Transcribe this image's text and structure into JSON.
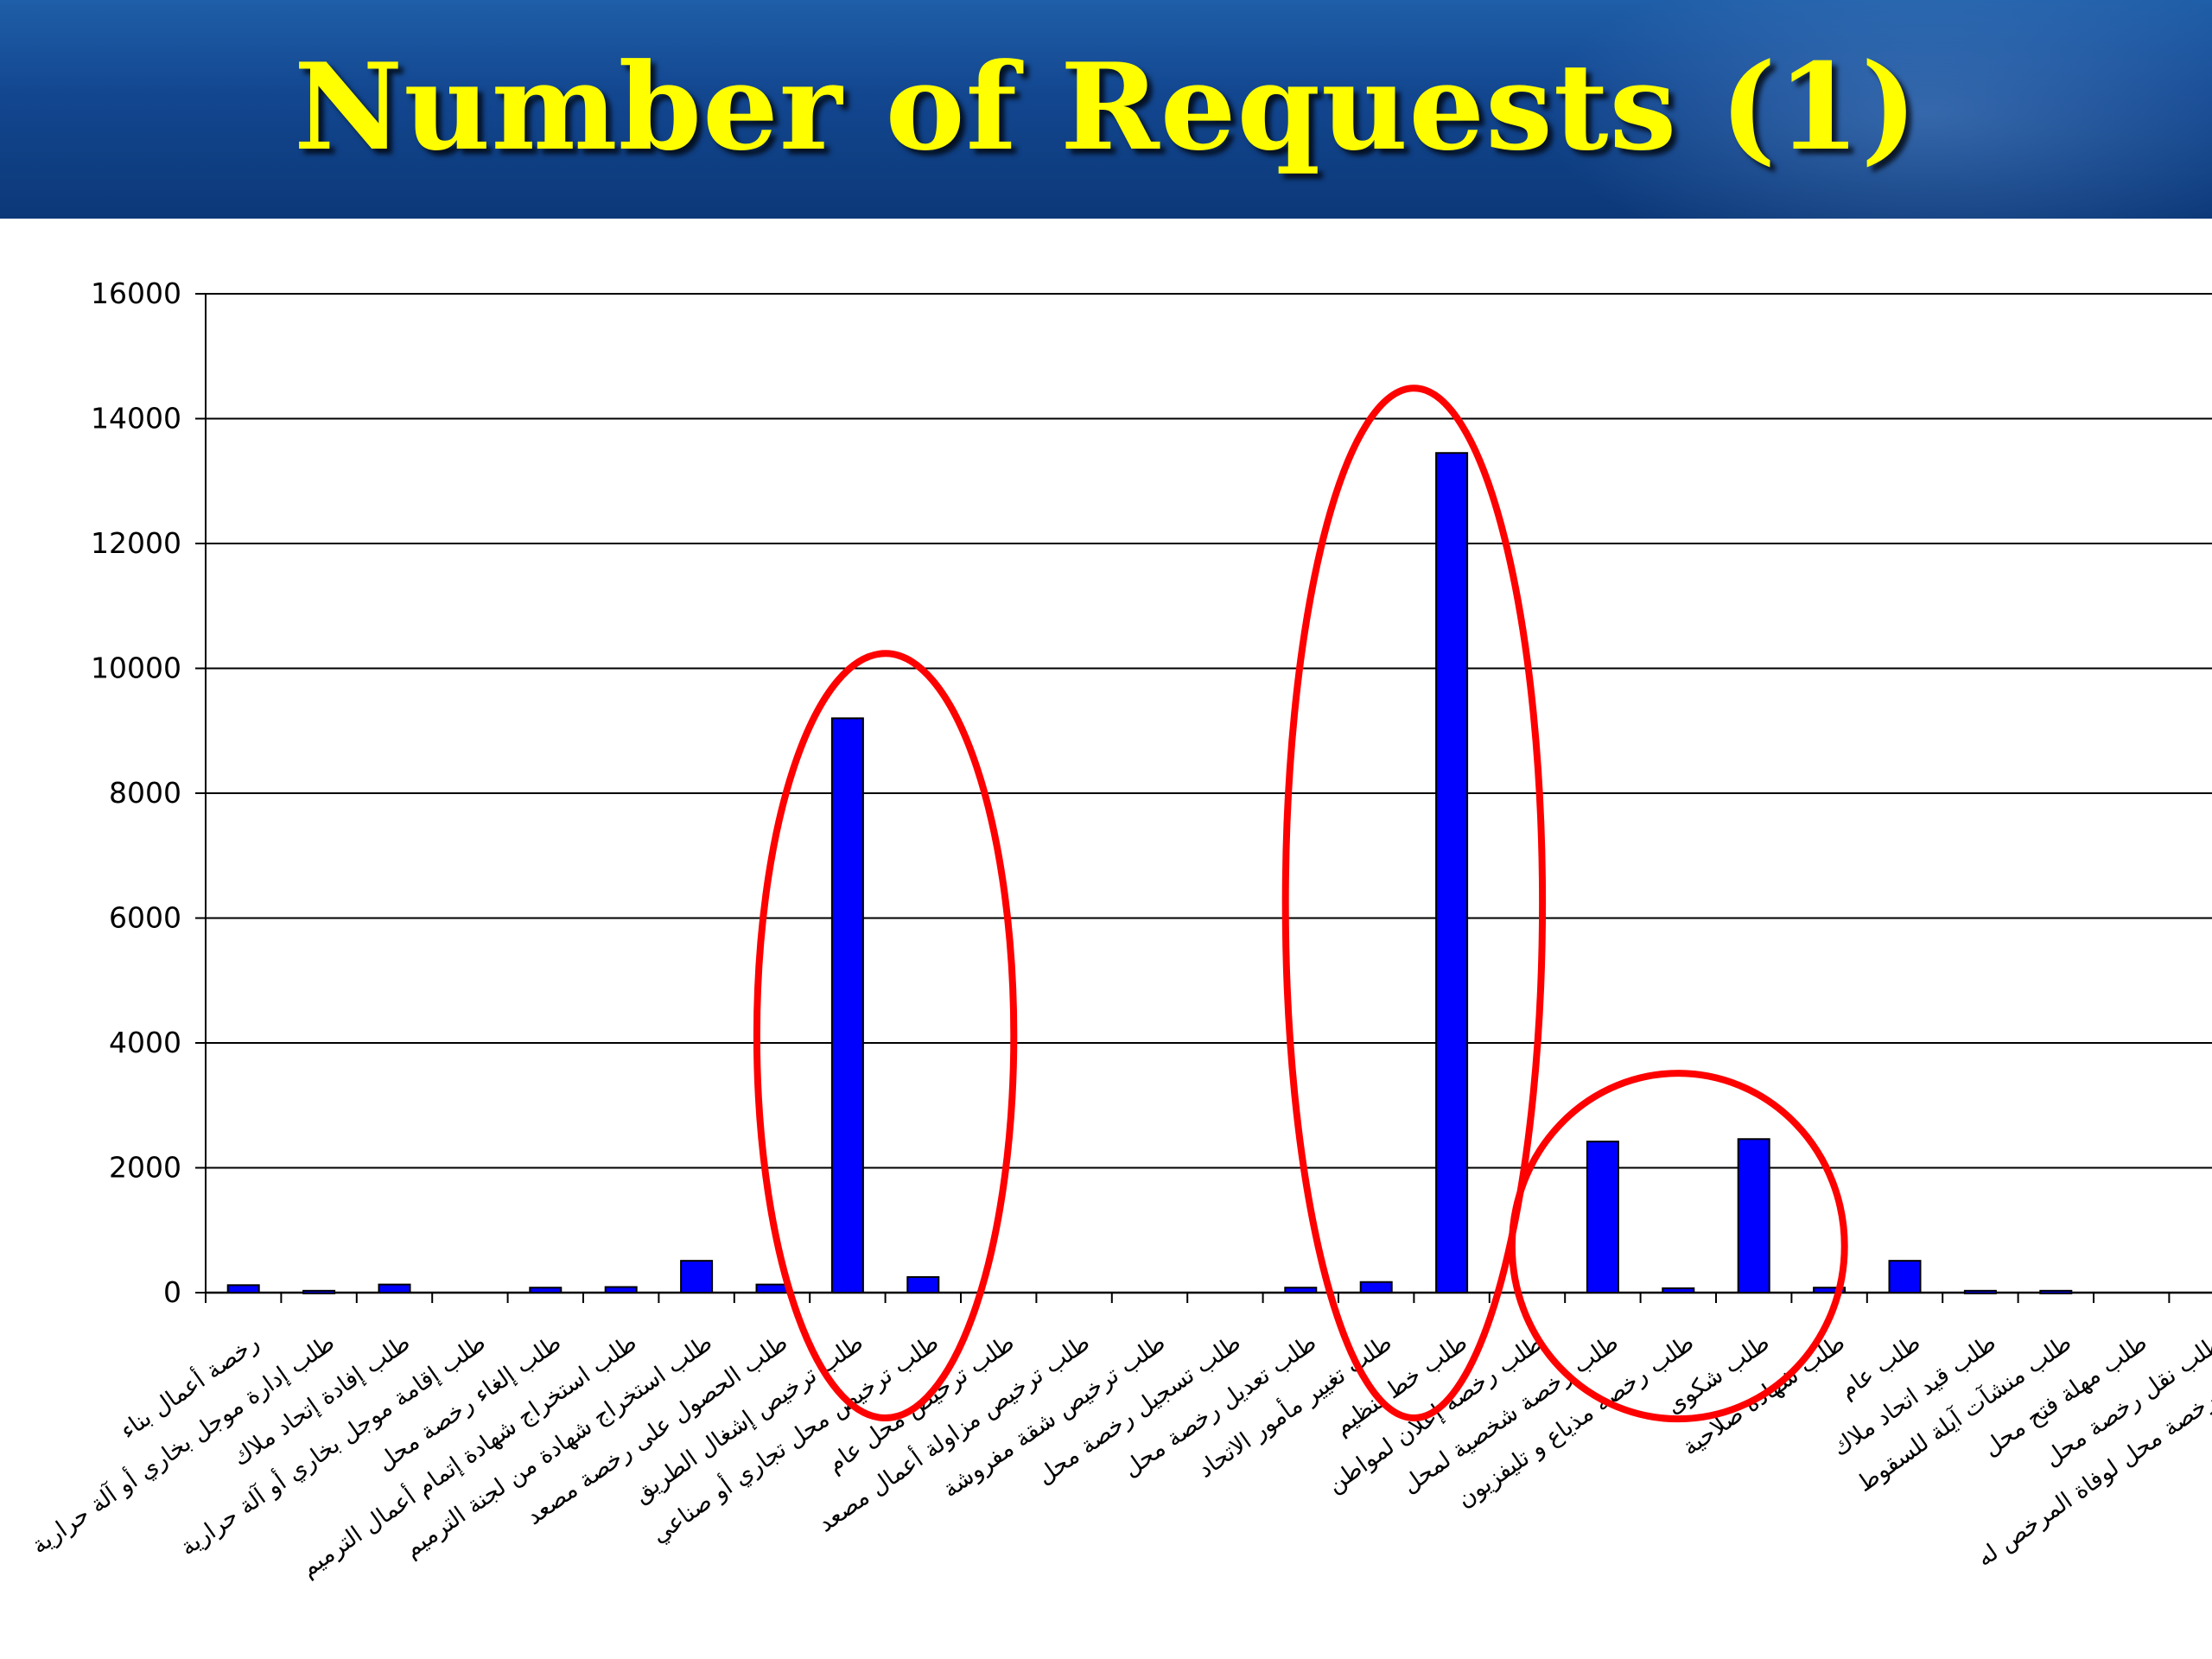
{
  "slide": {
    "title": "Number of Requests (1)"
  },
  "colors": {
    "bar": "#0000ff",
    "highlight": "#ff0000",
    "title": "#ffff00",
    "banner": "#12468f"
  },
  "chart_data": {
    "type": "bar",
    "title": "",
    "xlabel": "",
    "ylabel": "",
    "ylim": [
      0,
      16000
    ],
    "yticks": [
      "0",
      "2000",
      "4000",
      "6000",
      "8000",
      "10000",
      "12000",
      "14000",
      "16000"
    ],
    "grid": true,
    "legend": "none",
    "categories": [
      "رخصة أعمال بناء",
      "طلب إدارة موجل بخاري أو آلة حرارية",
      "طلب إفادة إتحاد ملاك",
      "طلب إقامة موجل بخاري أو آلة حرارية",
      "طلب إلغاء رخصة محل",
      "طلب استخراج شهادة إتمام أعمال الترميم",
      "طلب استخراج شهادة من لجنة الترميم",
      "طلب الحصول على رخصة مصعد",
      "طلب ترخيص إشغال الطريق",
      "طلب ترخيص محل تجاري أو صناعي",
      "طلب ترخيص محل عام",
      "طلب ترخيص مزاولة أعمال مصعد",
      "طلب ترخيص شقة مفروشة",
      "طلب تسجيل رخصة محل",
      "طلب تعديل رخصة محل",
      "طلب تغيير مأمور الاتحاد",
      "طلب خط تنظيم",
      "طلب رخصة إعلان لمواطن",
      "طلب رخصة شخصية لمحل",
      "طلب رخصة مذياع و تليفزيون",
      "طلب شكوى",
      "طلب شهادة صلاحية",
      "طلب عام",
      "طلب قيد اتحاد ملاك",
      "طلب منشآت آيلة للسقوط",
      "طلب مهلة فتح محل",
      "طلب نقل رخصة محل",
      "طلب نقل رخصة محل لوفاة المرخص له"
    ],
    "values": [
      120,
      30,
      130,
      0,
      80,
      90,
      510,
      130,
      9200,
      250,
      0,
      0,
      0,
      0,
      80,
      170,
      13450,
      0,
      2420,
      70,
      2460,
      80,
      510,
      30,
      30,
      0,
      0,
      0
    ],
    "highlighted_groups": [
      [
        8,
        9
      ],
      [
        15,
        16
      ],
      [
        18,
        20
      ]
    ]
  }
}
